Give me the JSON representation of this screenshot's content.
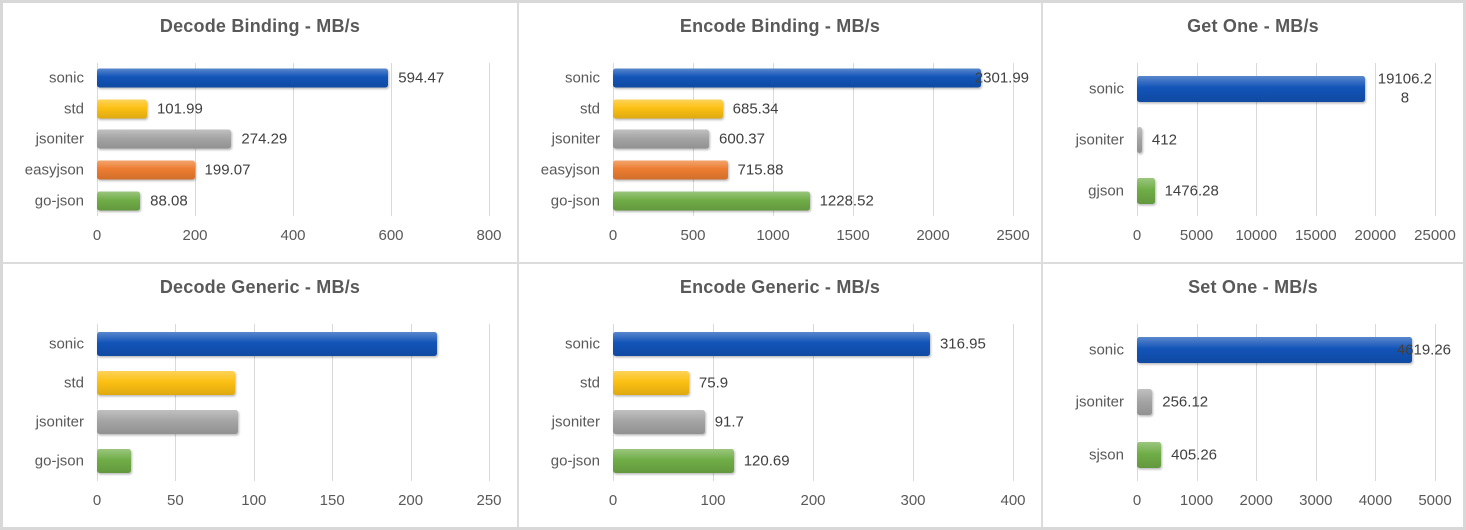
{
  "palette": {
    "sonic": "#1254b8",
    "std": "#fcc013",
    "jsoniter": "#a5a5a5",
    "easyjson": "#ed7d31",
    "go-json": "#70ad47",
    "gjson": "#70ad47",
    "sjson": "#70ad47"
  },
  "style": {
    "grid_color": "#d9d9d9",
    "title_color": "#595959",
    "axis_text_color": "#595959",
    "value_text_color": "#404040",
    "panel_divider_color": "#dcdcdc",
    "outer_border_color": "#d8d8d8"
  },
  "chart_data": [
    {
      "type": "bar",
      "orientation": "horizontal",
      "title": "Decode Binding - MB/s",
      "categories": [
        "sonic",
        "std",
        "jsoniter",
        "easyjson",
        "go-json"
      ],
      "values": [
        594.47,
        101.99,
        274.29,
        199.07,
        88.08
      ],
      "value_labels": [
        "594.47",
        "101.99",
        "274.29",
        "199.07",
        "88.08"
      ],
      "data_labels": true,
      "bar_colors": [
        "#1254b8",
        "#fcc013",
        "#a5a5a5",
        "#ed7d31",
        "#70ad47"
      ],
      "xlim": [
        0,
        800
      ],
      "xticks": [
        0,
        200,
        400,
        600,
        800
      ],
      "grid": true,
      "legend": "none"
    },
    {
      "type": "bar",
      "orientation": "horizontal",
      "title": "Encode Binding - MB/s",
      "categories": [
        "sonic",
        "std",
        "jsoniter",
        "easyjson",
        "go-json"
      ],
      "values": [
        2301.99,
        685.34,
        600.37,
        715.88,
        1228.52
      ],
      "value_labels": [
        "2301.99",
        "685.34",
        "600.37",
        "715.88",
        "1228.52"
      ],
      "data_labels": true,
      "bar_colors": [
        "#1254b8",
        "#fcc013",
        "#a5a5a5",
        "#ed7d31",
        "#70ad47"
      ],
      "xlim": [
        0,
        2500
      ],
      "xticks": [
        0,
        500,
        1000,
        1500,
        2000,
        2500
      ],
      "grid": true,
      "legend": "none"
    },
    {
      "type": "bar",
      "orientation": "horizontal",
      "title": "Get One - MB/s",
      "categories": [
        "sonic",
        "jsoniter",
        "gjson"
      ],
      "values": [
        19106.28,
        412,
        1476.28
      ],
      "value_labels": [
        "19106.28",
        "412",
        "1476.28"
      ],
      "data_labels": true,
      "bar_colors": [
        "#1254b8",
        "#a5a5a5",
        "#70ad47"
      ],
      "xlim": [
        0,
        25000
      ],
      "xticks": [
        0,
        5000,
        10000,
        15000,
        20000,
        25000
      ],
      "grid": true,
      "legend": "none"
    },
    {
      "type": "bar",
      "orientation": "horizontal",
      "title": "Decode Generic - MB/s",
      "categories": [
        "sonic",
        "std",
        "jsoniter",
        "go-json"
      ],
      "values": [
        217,
        88,
        90,
        22
      ],
      "value_labels": [
        "",
        "",
        "",
        ""
      ],
      "data_labels": false,
      "bar_colors": [
        "#1254b8",
        "#fcc013",
        "#a5a5a5",
        "#70ad47"
      ],
      "xlim": [
        0,
        250
      ],
      "xticks": [
        0,
        50,
        100,
        150,
        200,
        250
      ],
      "grid": true,
      "legend": "none"
    },
    {
      "type": "bar",
      "orientation": "horizontal",
      "title": "Encode Generic - MB/s",
      "categories": [
        "sonic",
        "std",
        "jsoniter",
        "go-json"
      ],
      "values": [
        316.95,
        75.9,
        91.7,
        120.69
      ],
      "value_labels": [
        "316.95",
        "75.9",
        "91.7",
        "120.69"
      ],
      "data_labels": true,
      "bar_colors": [
        "#1254b8",
        "#fcc013",
        "#a5a5a5",
        "#70ad47"
      ],
      "xlim": [
        0,
        400
      ],
      "xticks": [
        0,
        100,
        200,
        300,
        400
      ],
      "grid": true,
      "legend": "none"
    },
    {
      "type": "bar",
      "orientation": "horizontal",
      "title": "Set One - MB/s",
      "categories": [
        "sonic",
        "jsoniter",
        "sjson"
      ],
      "values": [
        4619.26,
        256.12,
        405.26
      ],
      "value_labels": [
        "4619.26",
        "256.12",
        "405.26"
      ],
      "data_labels": true,
      "bar_colors": [
        "#1254b8",
        "#a5a5a5",
        "#70ad47"
      ],
      "xlim": [
        0,
        5000
      ],
      "xticks": [
        0,
        1000,
        2000,
        3000,
        4000,
        5000
      ],
      "grid": true,
      "legend": "none"
    }
  ]
}
